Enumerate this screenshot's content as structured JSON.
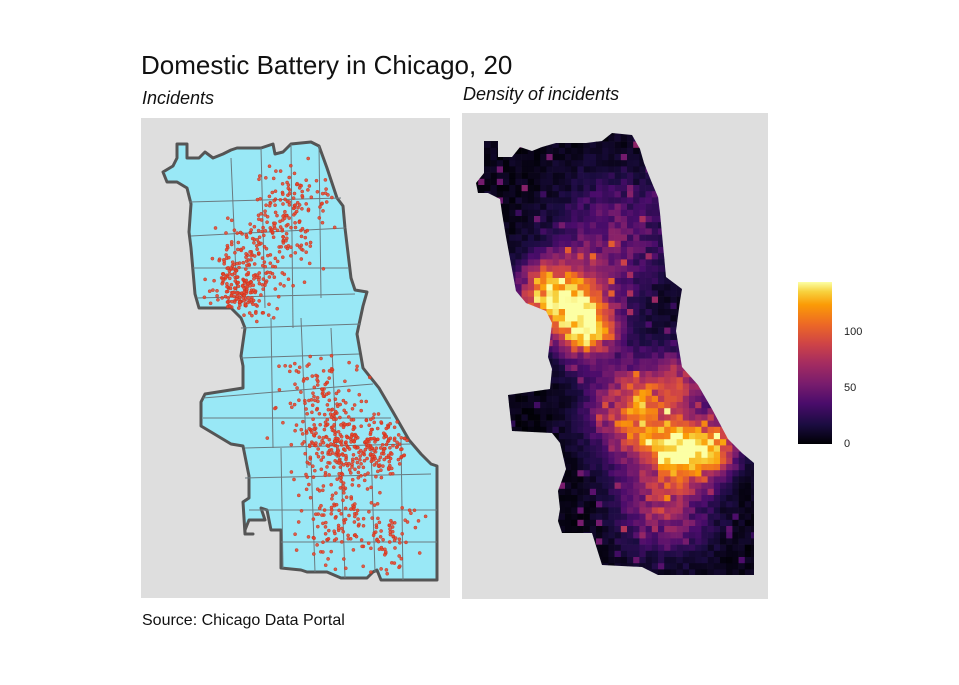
{
  "title": "Domestic Battery in Chicago, 20",
  "left_panel": {
    "subtitle": "Incidents"
  },
  "right_panel": {
    "subtitle": "Density of incidents"
  },
  "caption": "Source: Chicago Data Portal",
  "legend": {
    "ticks": [
      {
        "value": 0,
        "label": "0"
      },
      {
        "value": 50,
        "label": "50"
      },
      {
        "value": 100,
        "label": "100"
      }
    ],
    "max": 145,
    "colors": [
      "#000004",
      "#1b0c41",
      "#4a0c6b",
      "#781c6d",
      "#a52c60",
      "#cf4446",
      "#ed6925",
      "#fb9b06",
      "#f7d13d",
      "#fcffa4"
    ]
  },
  "colors": {
    "city_fill": "#99e8f6",
    "city_border": "#555555",
    "incident_point": "#e8442a",
    "panel_bg": "#dedede"
  }
}
